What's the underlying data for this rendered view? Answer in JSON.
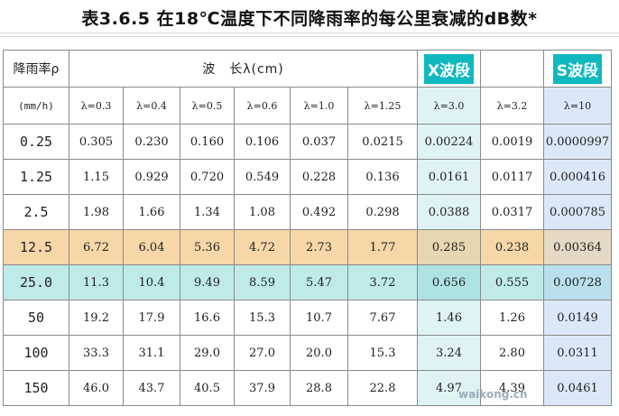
{
  "title": "表3.6.5 在18℃温度下不同降雨率的每公里衰减的dB数*",
  "header": {
    "rain_label": "降雨率ρ",
    "rain_unit": "(mm/h)",
    "wavelength_label": "波　长λ(cm)",
    "x_band_label": "X波段",
    "s_band_label": "S波段",
    "wavelengths": [
      "λ=0.3",
      "λ=0.4",
      "λ=0.5",
      "λ=0.6",
      "λ=1.0",
      "λ=1.25",
      "λ=3.0",
      "λ=3.2",
      "λ=10"
    ]
  },
  "rows": [
    {
      "rate": "0.25",
      "values": [
        "0.305",
        "0.230",
        "0.160",
        "0.106",
        "0.037",
        "0.0215",
        "0.00224",
        "0.0019",
        "0.0000997"
      ]
    },
    {
      "rate": "1.25",
      "values": [
        "1.15",
        "0.929",
        "0.720",
        "0.549",
        "0.228",
        "0.136",
        "0.0161",
        "0.0117",
        "0.000416"
      ]
    },
    {
      "rate": "2.5",
      "values": [
        "1.98",
        "1.66",
        "1.34",
        "1.08",
        "0.492",
        "0.298",
        "0.0388",
        "0.0317",
        "0.000785"
      ]
    },
    {
      "rate": "12.5",
      "values": [
        "6.72",
        "6.04",
        "5.36",
        "4.72",
        "2.73",
        "1.77",
        "0.285",
        "0.238",
        "0.00364"
      ]
    },
    {
      "rate": "25.0",
      "values": [
        "11.3",
        "10.4",
        "9.49",
        "8.59",
        "5.47",
        "3.72",
        "0.656",
        "0.555",
        "0.00728"
      ]
    },
    {
      "rate": "50",
      "values": [
        "19.2",
        "17.9",
        "16.6",
        "15.3",
        "10.7",
        "7.67",
        "1.46",
        "1.26",
        "0.0149"
      ]
    },
    {
      "rate": "100",
      "values": [
        "33.3",
        "31.1",
        "29.0",
        "27.0",
        "20.0",
        "15.3",
        "3.24",
        "2.80",
        "0.0311"
      ]
    },
    {
      "rate": "150",
      "values": [
        "46.0",
        "43.7",
        "40.5",
        "37.9",
        "28.8",
        "22.8",
        "4.97",
        "4.39",
        "0.0461"
      ]
    }
  ],
  "highlights": {
    "orange_row": "12.5",
    "cyan_row": "25.0",
    "orange": "#f7d7a8",
    "cyan": "#bfeaea",
    "band_label_bg": "#10b8c0"
  },
  "watermark": "waikong.cn"
}
